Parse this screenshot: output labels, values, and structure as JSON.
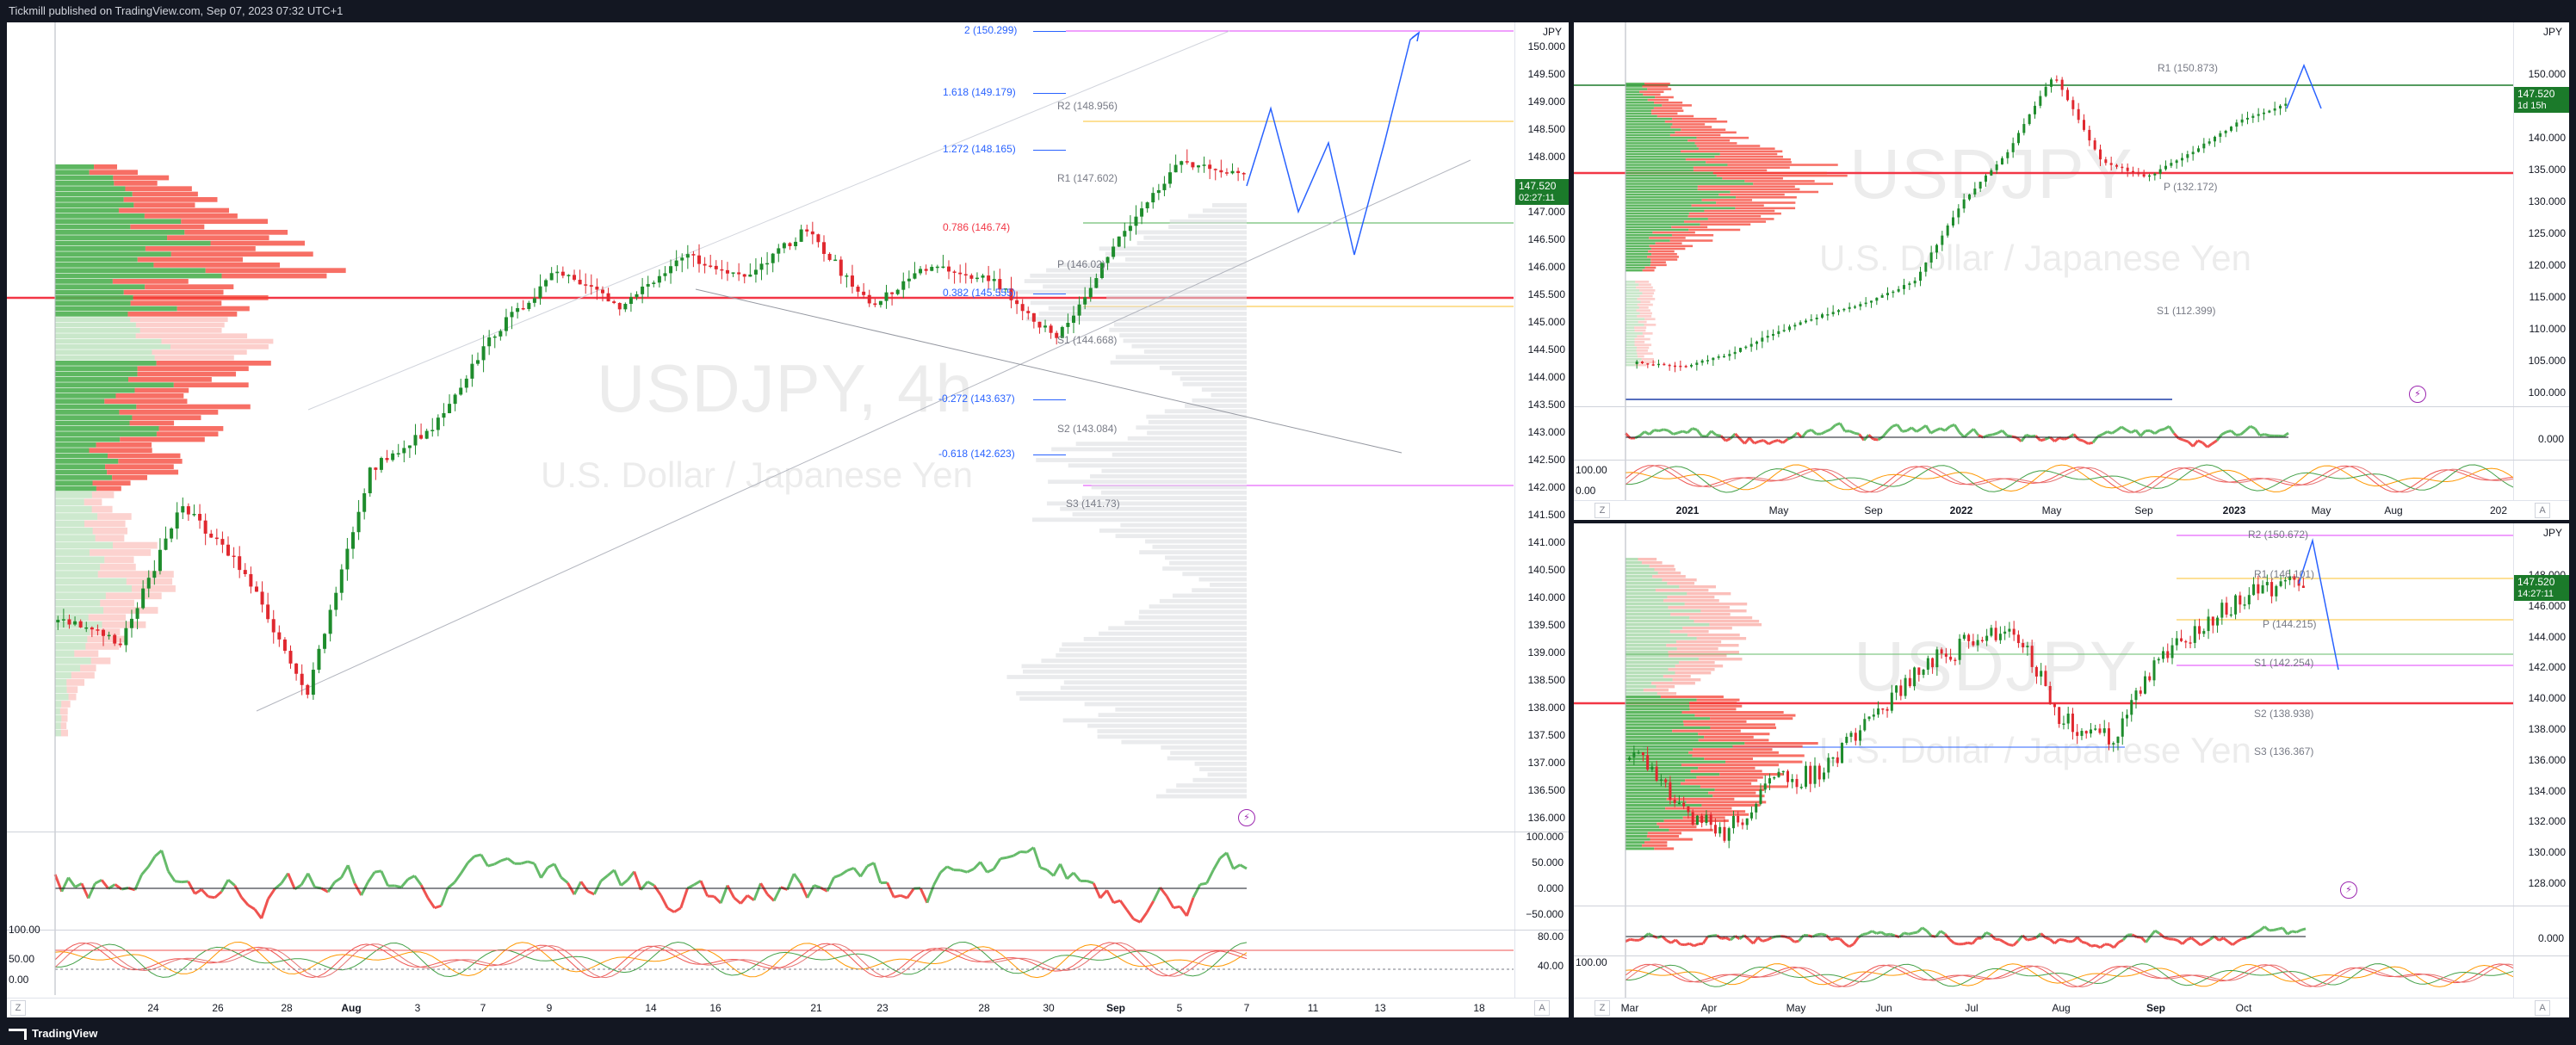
{
  "header": {
    "text": "Tickmill published on TradingView.com, Sep 07, 2023 07:32 UTC+1"
  },
  "footer": {
    "logo": "TradingView"
  },
  "main": {
    "currency": "JPY",
    "symbol": "USDJPY, 4h",
    "description": "U.S. Dollar / Japanese Yen",
    "price_ticks": [
      "150.000",
      "149.500",
      "149.000",
      "148.500",
      "148.000",
      "147.500",
      "147.000",
      "146.500",
      "146.000",
      "145.500",
      "145.000",
      "144.500",
      "144.000",
      "143.500",
      "143.000",
      "142.500",
      "142.000",
      "141.500",
      "141.000",
      "140.500",
      "140.000",
      "139.500",
      "139.000",
      "138.500",
      "138.000",
      "137.500",
      "137.000",
      "136.500",
      "136.000"
    ],
    "current_price": "147.520",
    "countdown": "02:27:11",
    "fib_levels": [
      "2 (150.299)",
      "1.618 (149.179)",
      "1.272 (148.165)",
      "0.786 (146.74)",
      "0.382 (145.555)",
      "-0.272 (143.637)",
      "-0.618 (142.623)"
    ],
    "pivots": [
      "R2 (148.956)",
      "R1 (147.602)",
      "P (146.02)",
      "S1 (144.668)",
      "S2 (143.084)",
      "S3 (141.73)"
    ],
    "time_labels": [
      "24",
      "26",
      "28",
      "Aug",
      "3",
      "7",
      "9",
      "14",
      "16",
      "21",
      "23",
      "28",
      "30",
      "Sep",
      "5",
      "7",
      "11",
      "13",
      "18"
    ],
    "osc1_ticks": [
      "100.000",
      "50.000",
      "0.000",
      "−50.000"
    ],
    "osc2_ticks": [
      "100.00",
      "50.00",
      "0.00"
    ],
    "osc2_right": [
      "80.00",
      "40.00"
    ],
    "zoom_btn": "Z",
    "auto_btn": "A"
  },
  "top_right": {
    "currency": "JPY",
    "symbol": "USDJPY",
    "description": "U.S. Dollar / Japanese Yen",
    "price_ticks": [
      "150.000",
      "145.000",
      "140.000",
      "135.000",
      "130.000",
      "125.000",
      "120.000",
      "115.000",
      "110.000",
      "105.000",
      "100.000"
    ],
    "current_price": "147.520",
    "countdown": "1d 15h",
    "pivots": [
      "R1 (150.873)",
      "P (132.172)",
      "S1 (112.399)"
    ],
    "time_labels": [
      "2021",
      "May",
      "Sep",
      "2022",
      "May",
      "Sep",
      "2023",
      "May",
      "Aug",
      "202"
    ],
    "osc1_ticks": [
      "0.000"
    ],
    "osc2_ticks": [
      "0.00",
      "100.00"
    ],
    "zoom_btn": "Z",
    "auto_btn": "A"
  },
  "bottom_right": {
    "currency": "JPY",
    "symbol": "USDJPY",
    "description": "U.S. Dollar / Japanese Yen",
    "price_ticks": [
      "148.000",
      "146.000",
      "144.000",
      "142.000",
      "140.000",
      "138.000",
      "136.000",
      "134.000",
      "132.000",
      "130.000",
      "128.000"
    ],
    "current_price": "147.520",
    "countdown": "14:27:11",
    "pivots": [
      "R2 (150.672)",
      "R1 (146.101)",
      "P (144.215)",
      "S1 (142.254)",
      "S2 (138.938)",
      "S3 (136.367)"
    ],
    "time_labels": [
      "Mar",
      "Apr",
      "May",
      "Jun",
      "Jul",
      "Aug",
      "Sep",
      "Oct"
    ],
    "osc1_ticks": [
      "0.000"
    ],
    "osc2_ticks": [
      "100.00"
    ],
    "zoom_btn": "Z",
    "auto_btn": "A"
  },
  "colors": {
    "up": "#089981",
    "up_bar": "#1e8c2c",
    "down": "#f23645",
    "fib": "#2962ff",
    "pivot_r2": "#e040fb",
    "current": "#1b7a2a"
  }
}
